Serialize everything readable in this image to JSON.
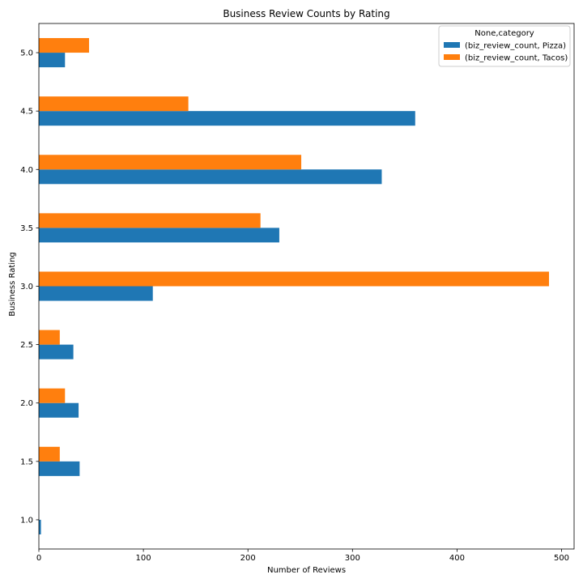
{
  "chart_data": {
    "type": "bar",
    "orientation": "horizontal",
    "title": "Business Review Counts by Rating",
    "xlabel": "Number of Reviews",
    "ylabel": "Business Rating",
    "categories": [
      "1.0",
      "1.5",
      "2.0",
      "2.5",
      "3.0",
      "3.5",
      "4.0",
      "4.5",
      "5.0"
    ],
    "xlim": [
      0,
      512
    ],
    "xticks": [
      0,
      100,
      200,
      300,
      400,
      500
    ],
    "grid": false,
    "legend": {
      "title": "None,category",
      "placement": "top-right"
    },
    "series": [
      {
        "name": "(biz_review_count, Pizza)",
        "color": "#1f77b4",
        "values": [
          2,
          39,
          38,
          33,
          109,
          230,
          328,
          360,
          25
        ]
      },
      {
        "name": "(biz_review_count, Tacos)",
        "color": "#ff7f0e",
        "values": [
          0,
          20,
          25,
          20,
          488,
          212,
          251,
          143,
          48
        ]
      }
    ]
  }
}
